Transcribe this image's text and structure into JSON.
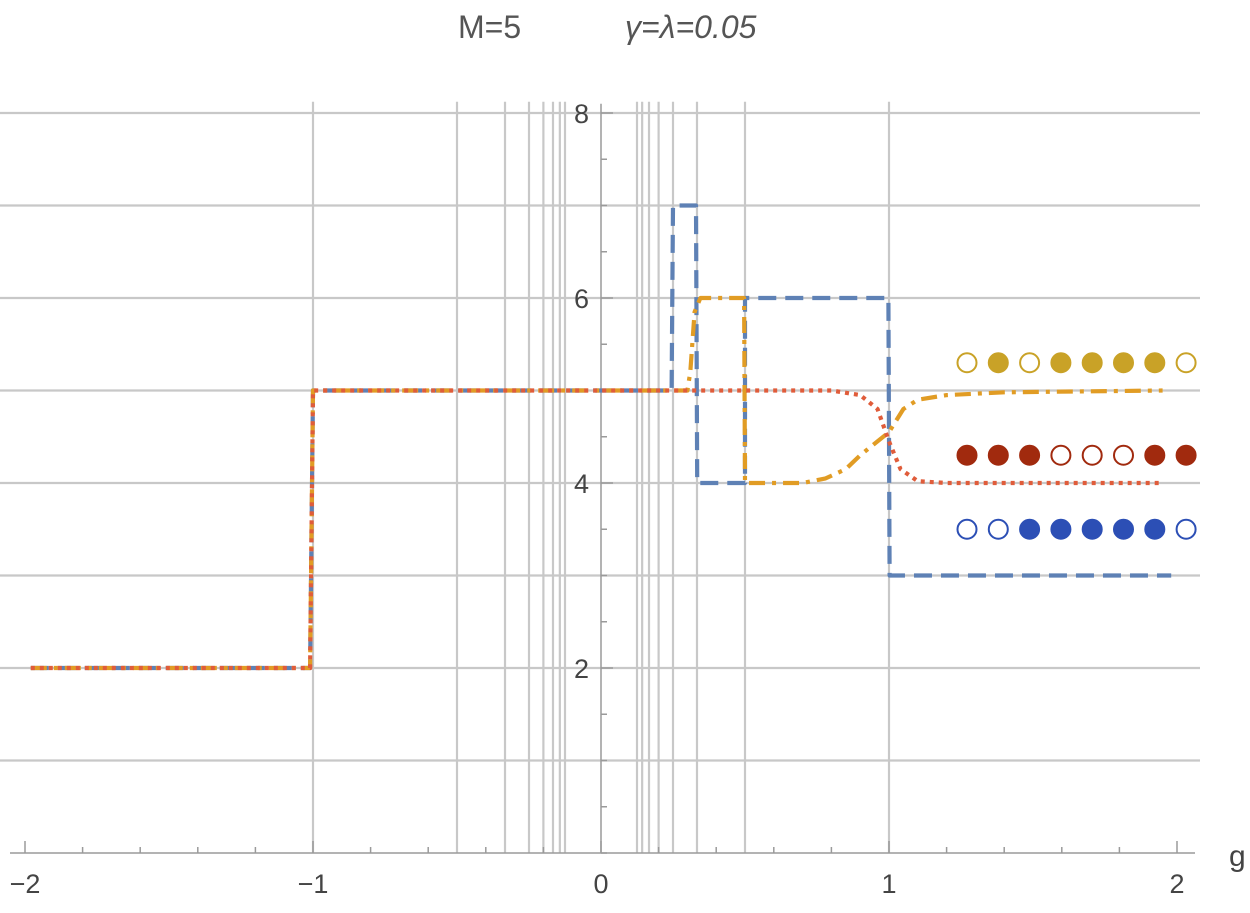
{
  "chart_data": {
    "type": "line",
    "title_left": "M=5",
    "title_right": "γ=λ=0.05",
    "xlabel": "g",
    "ylabel": "",
    "xlim": [
      -2.05,
      2.05
    ],
    "ylim": [
      0,
      8.1
    ],
    "grid": true,
    "x_ticks": [
      -2,
      -1,
      0,
      1,
      2
    ],
    "x_tick_labels": [
      "−2",
      "−1",
      "0",
      "1",
      "2"
    ],
    "y_ticks": [
      2,
      4,
      6,
      8
    ],
    "y_tick_labels": [
      "2",
      "4",
      "6",
      "8"
    ],
    "y_gridlines": [
      1,
      2,
      3,
      4,
      5,
      6,
      7,
      8
    ],
    "x_gridlines": [
      -1,
      -0.5,
      -0.3333,
      -0.25,
      -0.2,
      -0.1667,
      -0.1429,
      -0.125,
      0.125,
      0.1429,
      0.1667,
      0.2,
      0.25,
      0.3333,
      0.5,
      1
    ],
    "series": [
      {
        "color": "#5e81b5",
        "style": "dashed",
        "points": [
          [
            -1.98,
            2
          ],
          [
            -1.01,
            2
          ],
          [
            -1.0,
            5
          ],
          [
            0.245,
            5
          ],
          [
            0.25,
            7
          ],
          [
            0.33,
            7
          ],
          [
            0.334,
            4
          ],
          [
            0.5,
            4
          ],
          [
            0.5,
            6
          ],
          [
            0.998,
            6
          ],
          [
            1.002,
            3
          ],
          [
            1.98,
            3
          ]
        ]
      },
      {
        "color": "#e19c24",
        "style": "dashdot",
        "points": [
          [
            -1.98,
            2
          ],
          [
            -1.01,
            2
          ],
          [
            -1.0,
            5
          ],
          [
            0.3,
            5
          ],
          [
            0.31,
            5.2
          ],
          [
            0.325,
            5.85
          ],
          [
            0.345,
            6
          ],
          [
            0.497,
            6
          ],
          [
            0.5,
            4
          ],
          [
            0.7,
            4
          ],
          [
            0.78,
            4.05
          ],
          [
            0.85,
            4.15
          ],
          [
            0.9,
            4.3
          ],
          [
            1.0,
            4.55
          ],
          [
            1.05,
            4.8
          ],
          [
            1.1,
            4.9
          ],
          [
            1.2,
            4.95
          ],
          [
            1.4,
            4.98
          ],
          [
            1.95,
            5
          ]
        ]
      },
      {
        "color": "#e05c3a",
        "style": "dotted",
        "points": [
          [
            -1.98,
            2
          ],
          [
            -1.01,
            2
          ],
          [
            -1.0,
            5
          ],
          [
            0.8,
            5
          ],
          [
            0.9,
            4.95
          ],
          [
            0.96,
            4.8
          ],
          [
            1.0,
            4.45
          ],
          [
            1.04,
            4.15
          ],
          [
            1.1,
            4.02
          ],
          [
            1.2,
            4.0
          ],
          [
            1.95,
            4
          ]
        ]
      }
    ],
    "occupation_rows": [
      {
        "y": 5.3,
        "color": "#c9a227",
        "filled": [
          false,
          true,
          false,
          true,
          true,
          true,
          true,
          false
        ]
      },
      {
        "y": 4.3,
        "color": "#a12a0e",
        "filled": [
          true,
          true,
          true,
          false,
          false,
          false,
          true,
          true
        ]
      },
      {
        "y": 3.5,
        "color": "#2c4fb5",
        "filled": [
          false,
          false,
          true,
          true,
          true,
          true,
          true,
          false
        ]
      }
    ]
  }
}
